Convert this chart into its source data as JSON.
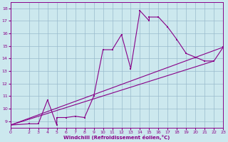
{
  "xlabel": "Windchill (Refroidissement éolien,°C)",
  "bg_color": "#cce8ee",
  "line_color": "#880088",
  "grid_color": "#99bbcc",
  "xlim": [
    0,
    23
  ],
  "ylim": [
    8.5,
    18.5
  ],
  "xticks": [
    0,
    2,
    3,
    4,
    5,
    6,
    7,
    8,
    9,
    10,
    11,
    12,
    13,
    14,
    15,
    16,
    17,
    18,
    19,
    20,
    21,
    22,
    23
  ],
  "yticks": [
    9,
    10,
    11,
    12,
    13,
    14,
    15,
    16,
    17,
    18
  ],
  "x": [
    0,
    2,
    3,
    4,
    5,
    5,
    6,
    7,
    8,
    9,
    10,
    11,
    12,
    13,
    14,
    15,
    15,
    16,
    17,
    18,
    19,
    20,
    21,
    22,
    23
  ],
  "y": [
    8.7,
    8.8,
    8.8,
    10.7,
    8.7,
    9.3,
    9.3,
    9.4,
    9.3,
    11.0,
    14.7,
    14.7,
    15.9,
    13.2,
    17.8,
    17.0,
    17.3,
    17.3,
    16.5,
    15.5,
    14.4,
    14.1,
    13.8,
    13.8,
    14.9
  ]
}
